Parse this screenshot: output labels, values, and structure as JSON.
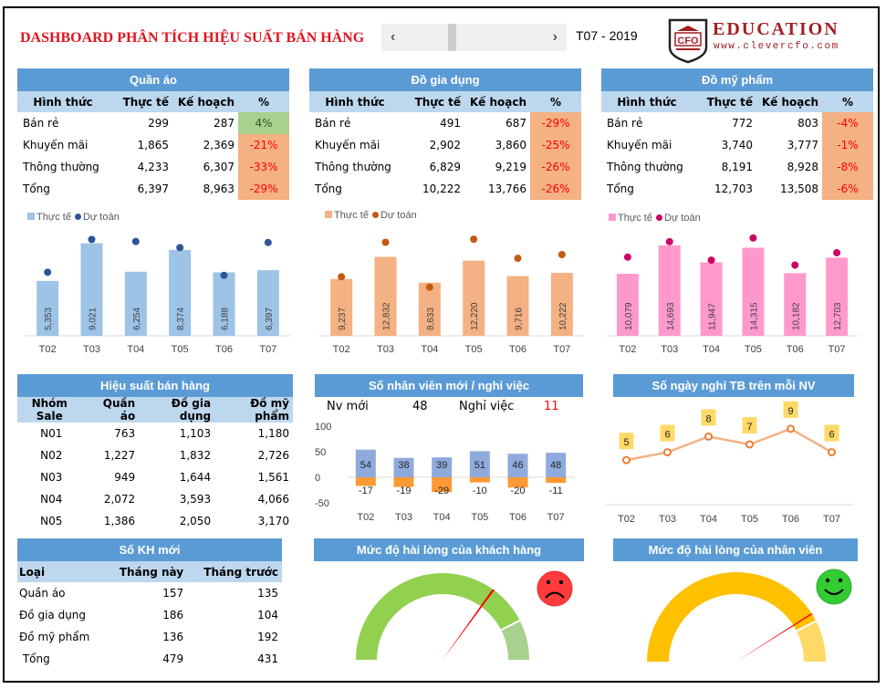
{
  "header": {
    "title": "DASHBOARD PHÂN TÍCH HIỆU SUẤT BÁN HÀNG",
    "period": "T07 - 2019",
    "scroll_left_icon": "‹",
    "scroll_right_icon": "›",
    "logo_badge": "CFO",
    "logo_text": "EDUCATION",
    "logo_url": "www.clevercfo.com"
  },
  "kpi_tables": [
    {
      "title": "Quần áo",
      "columns": [
        "Hình thức",
        "Thực tế",
        "Kế hoạch",
        "%"
      ],
      "rows": [
        {
          "label": "Bán rẻ",
          "actual": "299",
          "plan": "287",
          "pct": "4%",
          "positive": true
        },
        {
          "label": "Khuyến mãi",
          "actual": "1,865",
          "plan": "2,369",
          "pct": "-21%",
          "positive": false
        },
        {
          "label": "Thông thường",
          "actual": "4,233",
          "plan": "6,307",
          "pct": "-33%",
          "positive": false
        },
        {
          "label": "Tổng",
          "actual": "6,397",
          "plan": "8,963",
          "pct": "-29%",
          "positive": false
        }
      ]
    },
    {
      "title": "Đồ gia dụng",
      "columns": [
        "Hình thức",
        "Thực tế",
        "Kế hoạch",
        "%"
      ],
      "rows": [
        {
          "label": "Bán rẻ",
          "actual": "491",
          "plan": "687",
          "pct": "-29%",
          "positive": false
        },
        {
          "label": "Khuyến mãi",
          "actual": "2,902",
          "plan": "3,860",
          "pct": "-25%",
          "positive": false
        },
        {
          "label": "Thông thường",
          "actual": "6,829",
          "plan": "9,219",
          "pct": "-26%",
          "positive": false
        },
        {
          "label": "Tổng",
          "actual": "10,222",
          "plan": "13,766",
          "pct": "-26%",
          "positive": false
        }
      ]
    },
    {
      "title": "Đồ mỹ phẩm",
      "columns": [
        "Hình thức",
        "Thực tế",
        "Kế hoạch",
        "%"
      ],
      "rows": [
        {
          "label": "Bán rẻ",
          "actual": "772",
          "plan": "803",
          "pct": "-4%",
          "positive": false
        },
        {
          "label": "Khuyến mãi",
          "actual": "3,740",
          "plan": "3,777",
          "pct": "-1%",
          "positive": false
        },
        {
          "label": "Thông thường",
          "actual": "8,191",
          "plan": "8,928",
          "pct": "-8%",
          "positive": false
        },
        {
          "label": "Tổng",
          "actual": "12,703",
          "plan": "13,508",
          "pct": "-6%",
          "positive": false
        }
      ]
    }
  ],
  "sales_perf": {
    "title": "Hiệu suất bán hàng",
    "columns": [
      "Nhóm Sale",
      "Quần áo",
      "Đồ gia dụng",
      "Đồ mỹ phẩm"
    ],
    "rows": [
      [
        "N01",
        "763",
        "1,103",
        "1,180"
      ],
      [
        "N02",
        "1,227",
        "1,832",
        "2,726"
      ],
      [
        "N03",
        "949",
        "1,644",
        "1,561"
      ],
      [
        "N04",
        "2,072",
        "3,593",
        "4,066"
      ],
      [
        "N05",
        "1,386",
        "2,050",
        "3,170"
      ]
    ]
  },
  "staff": {
    "title": "Số nhân viên mới / nghỉ việc",
    "new_label": "Nv mới",
    "new_value": "48",
    "quit_label": "Nghỉ việc",
    "quit_value": "11"
  },
  "leave": {
    "title": "Số ngày nghỉ TB trên mỗi NV"
  },
  "new_customers": {
    "title": "Số KH mới",
    "columns": [
      "Loại",
      "Tháng này",
      "Tháng trước"
    ],
    "rows": [
      [
        "Quần áo",
        "157",
        "135"
      ],
      [
        "Đồ gia dụng",
        "186",
        "104"
      ],
      [
        "Đồ mỹ phẩm",
        "136",
        "192"
      ],
      [
        " Tổng",
        "479",
        "431"
      ]
    ]
  },
  "gauges": [
    {
      "title": "Mức độ hài lòng của khách hàng",
      "mood": "sad",
      "face_icon": "sad-face-icon"
    },
    {
      "title": "Mức độ hài lòng của nhân viên",
      "mood": "happy",
      "face_icon": "happy-face-icon"
    }
  ],
  "colors": {
    "header_blue": "#5b9bd5",
    "subheader_blue": "#bdd7ee",
    "neg_fill": "#f4b183",
    "pos_fill": "#a9d18e",
    "bar_blue": "#9dc3e6",
    "dot_blue": "#2f5597",
    "bar_orange": "#f4b183",
    "dot_orange": "#c55a11",
    "bar_pink": "#ff99cc",
    "dot_pink": "#cc0066",
    "staff_new": "#8faadc",
    "staff_quit": "#ff9933",
    "line_orange": "#f4b183",
    "label_yellow": "#ffd966",
    "gauge_green": "#92d050",
    "gauge_green_light": "#a9d18e",
    "gauge_yellow": "#ffc000",
    "gauge_yellow_light": "#ffd966",
    "needle": "#ff0000",
    "title_red": "#e0141e"
  },
  "chart_data": [
    {
      "type": "bar",
      "title": "Quần áo - Thực tế vs Dự toán",
      "categories": [
        "T02",
        "T03",
        "T04",
        "T05",
        "T06",
        "T07"
      ],
      "legend": [
        "Thực tế",
        "Dự toán"
      ],
      "legend_position": "top-left",
      "series": [
        {
          "name": "Thực tế",
          "kind": "bar",
          "values": [
            5353,
            9021,
            6254,
            8374,
            6188,
            6397
          ]
        },
        {
          "name": "Dự toán",
          "kind": "dot",
          "values": [
            6200,
            9400,
            9200,
            8600,
            5900,
            9100
          ]
        }
      ],
      "ylim": [
        0,
        10500
      ]
    },
    {
      "type": "bar",
      "title": "Đồ gia dụng - Thực tế vs Dự toán",
      "categories": [
        "T02",
        "T03",
        "T04",
        "T05",
        "T06",
        "T07"
      ],
      "legend": [
        "Thực tế",
        "Dự toán"
      ],
      "legend_position": "top-left",
      "series": [
        {
          "name": "Thực tế",
          "kind": "bar",
          "values": [
            9237,
            12832,
            8633,
            12220,
            9716,
            10222
          ]
        },
        {
          "name": "Dự toán",
          "kind": "dot",
          "values": [
            9600,
            15200,
            7900,
            15700,
            12600,
            13200
          ]
        }
      ],
      "ylim": [
        0,
        17500
      ]
    },
    {
      "type": "bar",
      "title": "Đồ mỹ phẩm - Thực tế vs Dự toán",
      "categories": [
        "T02",
        "T03",
        "T04",
        "T05",
        "T06",
        "T07"
      ],
      "legend": [
        "Thực tế",
        "Dự toán"
      ],
      "legend_position": "top-left",
      "series": [
        {
          "name": "Thực tế",
          "kind": "bar",
          "values": [
            10079,
            14693,
            11947,
            14315,
            10182,
            12703
          ]
        },
        {
          "name": "Dự toán",
          "kind": "dot",
          "values": [
            12800,
            15300,
            12300,
            15900,
            11500,
            13500
          ]
        }
      ],
      "ylim": [
        0,
        17500
      ]
    },
    {
      "type": "bar",
      "title": "Số nhân viên mới / nghỉ việc",
      "categories": [
        "T02",
        "T03",
        "T04",
        "T05",
        "T06",
        "T07"
      ],
      "series": [
        {
          "name": "Nv mới",
          "values": [
            54,
            38,
            39,
            51,
            46,
            48
          ]
        },
        {
          "name": "Nghỉ việc",
          "values": [
            -17,
            -19,
            -29,
            -10,
            -20,
            -11
          ]
        }
      ],
      "yticks": [
        100,
        50,
        0,
        -50
      ],
      "ylim": [
        -50,
        100
      ]
    },
    {
      "type": "line",
      "title": "Số ngày nghỉ TB trên mỗi NV",
      "categories": [
        "T02",
        "T03",
        "T04",
        "T05",
        "T06",
        "T07"
      ],
      "series": [
        {
          "name": "Số ngày nghỉ",
          "values": [
            5,
            6,
            8,
            7,
            9,
            6
          ]
        }
      ],
      "ylim": [
        0,
        12
      ]
    },
    {
      "type": "gauge",
      "title": "Mức độ hài lòng của khách hàng",
      "value": 0.7,
      "band_split": 0.85
    },
    {
      "type": "gauge",
      "title": "Mức độ hài lòng của nhân viên",
      "value": 0.82,
      "band_split": 0.85
    }
  ]
}
